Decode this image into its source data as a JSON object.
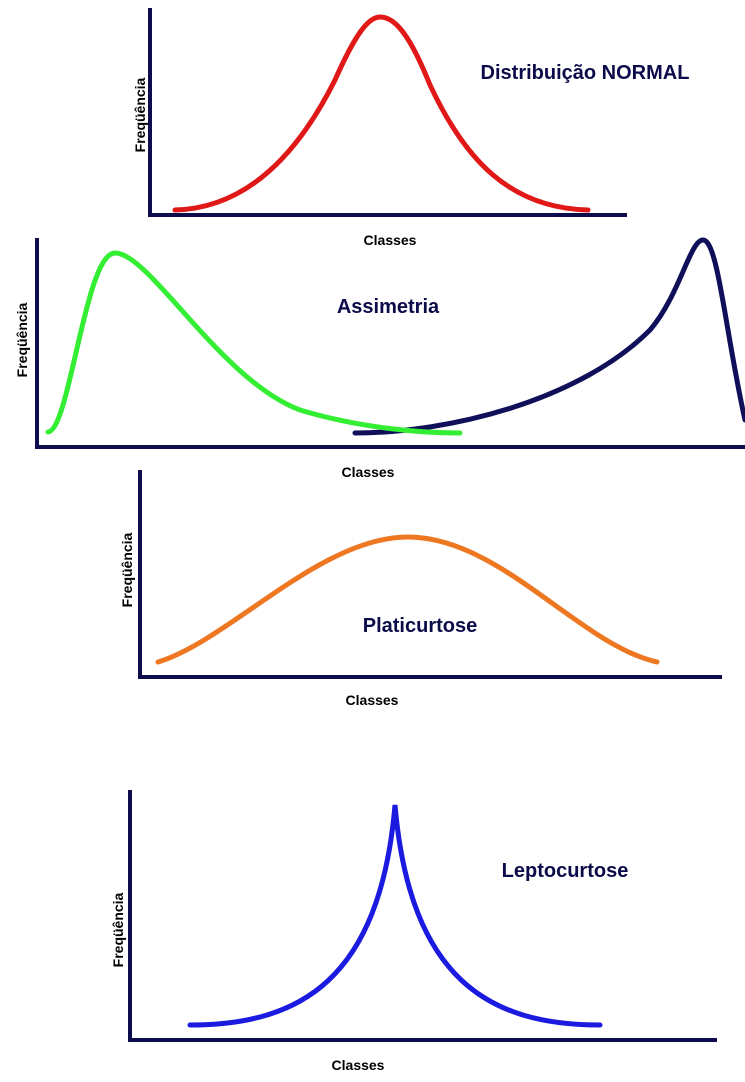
{
  "panels": [
    {
      "title": "Distribuição NORMAL",
      "y_label": "Freqüência",
      "x_label": "Classes"
    },
    {
      "title": "Assimetria",
      "y_label": "Freqüência",
      "x_label": "Classes"
    },
    {
      "title": "Platicurtose",
      "y_label": "Freqüência",
      "x_label": "Classes"
    },
    {
      "title": "Leptocurtose",
      "y_label": "Freqüência",
      "x_label": "Classes"
    }
  ]
}
